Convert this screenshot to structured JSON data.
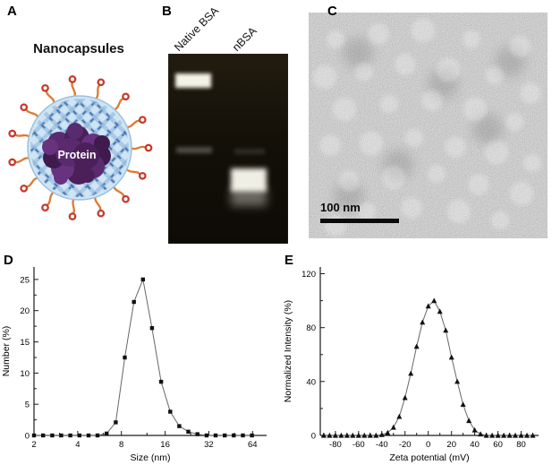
{
  "panels": {
    "a": {
      "label": "A",
      "title": "Nanocapsules",
      "protein_label": "Protein"
    },
    "b": {
      "label": "B",
      "lane_labels": [
        "Native BSA",
        "nBSA"
      ]
    },
    "c": {
      "label": "C",
      "scale_bar": "100 nm"
    },
    "d": {
      "label": "D"
    },
    "e": {
      "label": "E"
    }
  },
  "colors": {
    "shell_fill": "#cfe5f4",
    "shell_stroke": "#9cc0de",
    "mesh_strip": "#86add8",
    "mesh_dash": "#3c68a5",
    "tail": "#dd7a33",
    "tail_end": "#c6392b",
    "protein": "#5a2a6e",
    "gel_background": "#131008",
    "band": "#fbfbf0"
  },
  "chart_data": [
    {
      "type": "line",
      "title": "",
      "xlabel": "Size (nm)",
      "ylabel": "Number (%)",
      "xscale": "log",
      "marker": "square",
      "grid": false,
      "legend": "none",
      "xlim": [
        2,
        80
      ],
      "ylim": [
        0,
        27
      ],
      "xticks": [
        2,
        4,
        8,
        16,
        32,
        64
      ],
      "yticks": [
        0,
        5,
        10,
        15,
        20,
        25
      ],
      "minor_xticks": [
        3,
        6,
        12,
        24,
        48
      ],
      "minor_yticks": [
        2.5,
        7.5,
        12.5,
        17.5,
        22.5
      ],
      "x": [
        2,
        2.31,
        2.67,
        3.08,
        3.56,
        4.11,
        4.75,
        5.48,
        6.33,
        7.31,
        8.44,
        9.75,
        11.26,
        13.0,
        15.02,
        17.35,
        20.03,
        23.13,
        26.72,
        30.86,
        35.64,
        41.16,
        47.54,
        54.9,
        63.41
      ],
      "y": [
        0,
        0,
        0,
        0,
        0,
        0,
        0,
        0,
        0.3,
        2.1,
        12.5,
        21.4,
        25.0,
        17.2,
        8.6,
        3.8,
        1.5,
        0.6,
        0.2,
        0,
        0,
        0,
        0,
        0,
        0
      ]
    },
    {
      "type": "line",
      "title": "",
      "xlabel": "Zeta potential (mV)",
      "ylabel": "Normalized Intensity (%)",
      "xscale": "linear",
      "marker": "triangle",
      "grid": false,
      "legend": "none",
      "xlim": [
        -93,
        95
      ],
      "ylim": [
        0,
        125
      ],
      "xticks": [
        -80,
        -60,
        -40,
        -20,
        0,
        20,
        40,
        60,
        80
      ],
      "yticks": [
        0,
        40,
        80,
        120
      ],
      "minor_xticks": [
        -90,
        -70,
        -50,
        -30,
        -10,
        10,
        30,
        50,
        70,
        90
      ],
      "minor_yticks": [
        20,
        60,
        100
      ],
      "x": [
        -90,
        -85,
        -80,
        -75,
        -70,
        -65,
        -60,
        -55,
        -50,
        -45,
        -40,
        -35,
        -30,
        -25,
        -20,
        -15,
        -10,
        -5,
        0,
        5,
        10,
        15,
        20,
        25,
        30,
        35,
        40,
        45,
        50,
        55,
        60,
        65,
        70,
        75,
        80,
        85,
        90
      ],
      "y": [
        0,
        0,
        0,
        0,
        0,
        0,
        0,
        0,
        0,
        0,
        0.5,
        2,
        6,
        14,
        28,
        46,
        66,
        84,
        96,
        100,
        92,
        78,
        58,
        40,
        23,
        11,
        4,
        1,
        0,
        0,
        0,
        0,
        0,
        0,
        0,
        0,
        0
      ]
    }
  ]
}
